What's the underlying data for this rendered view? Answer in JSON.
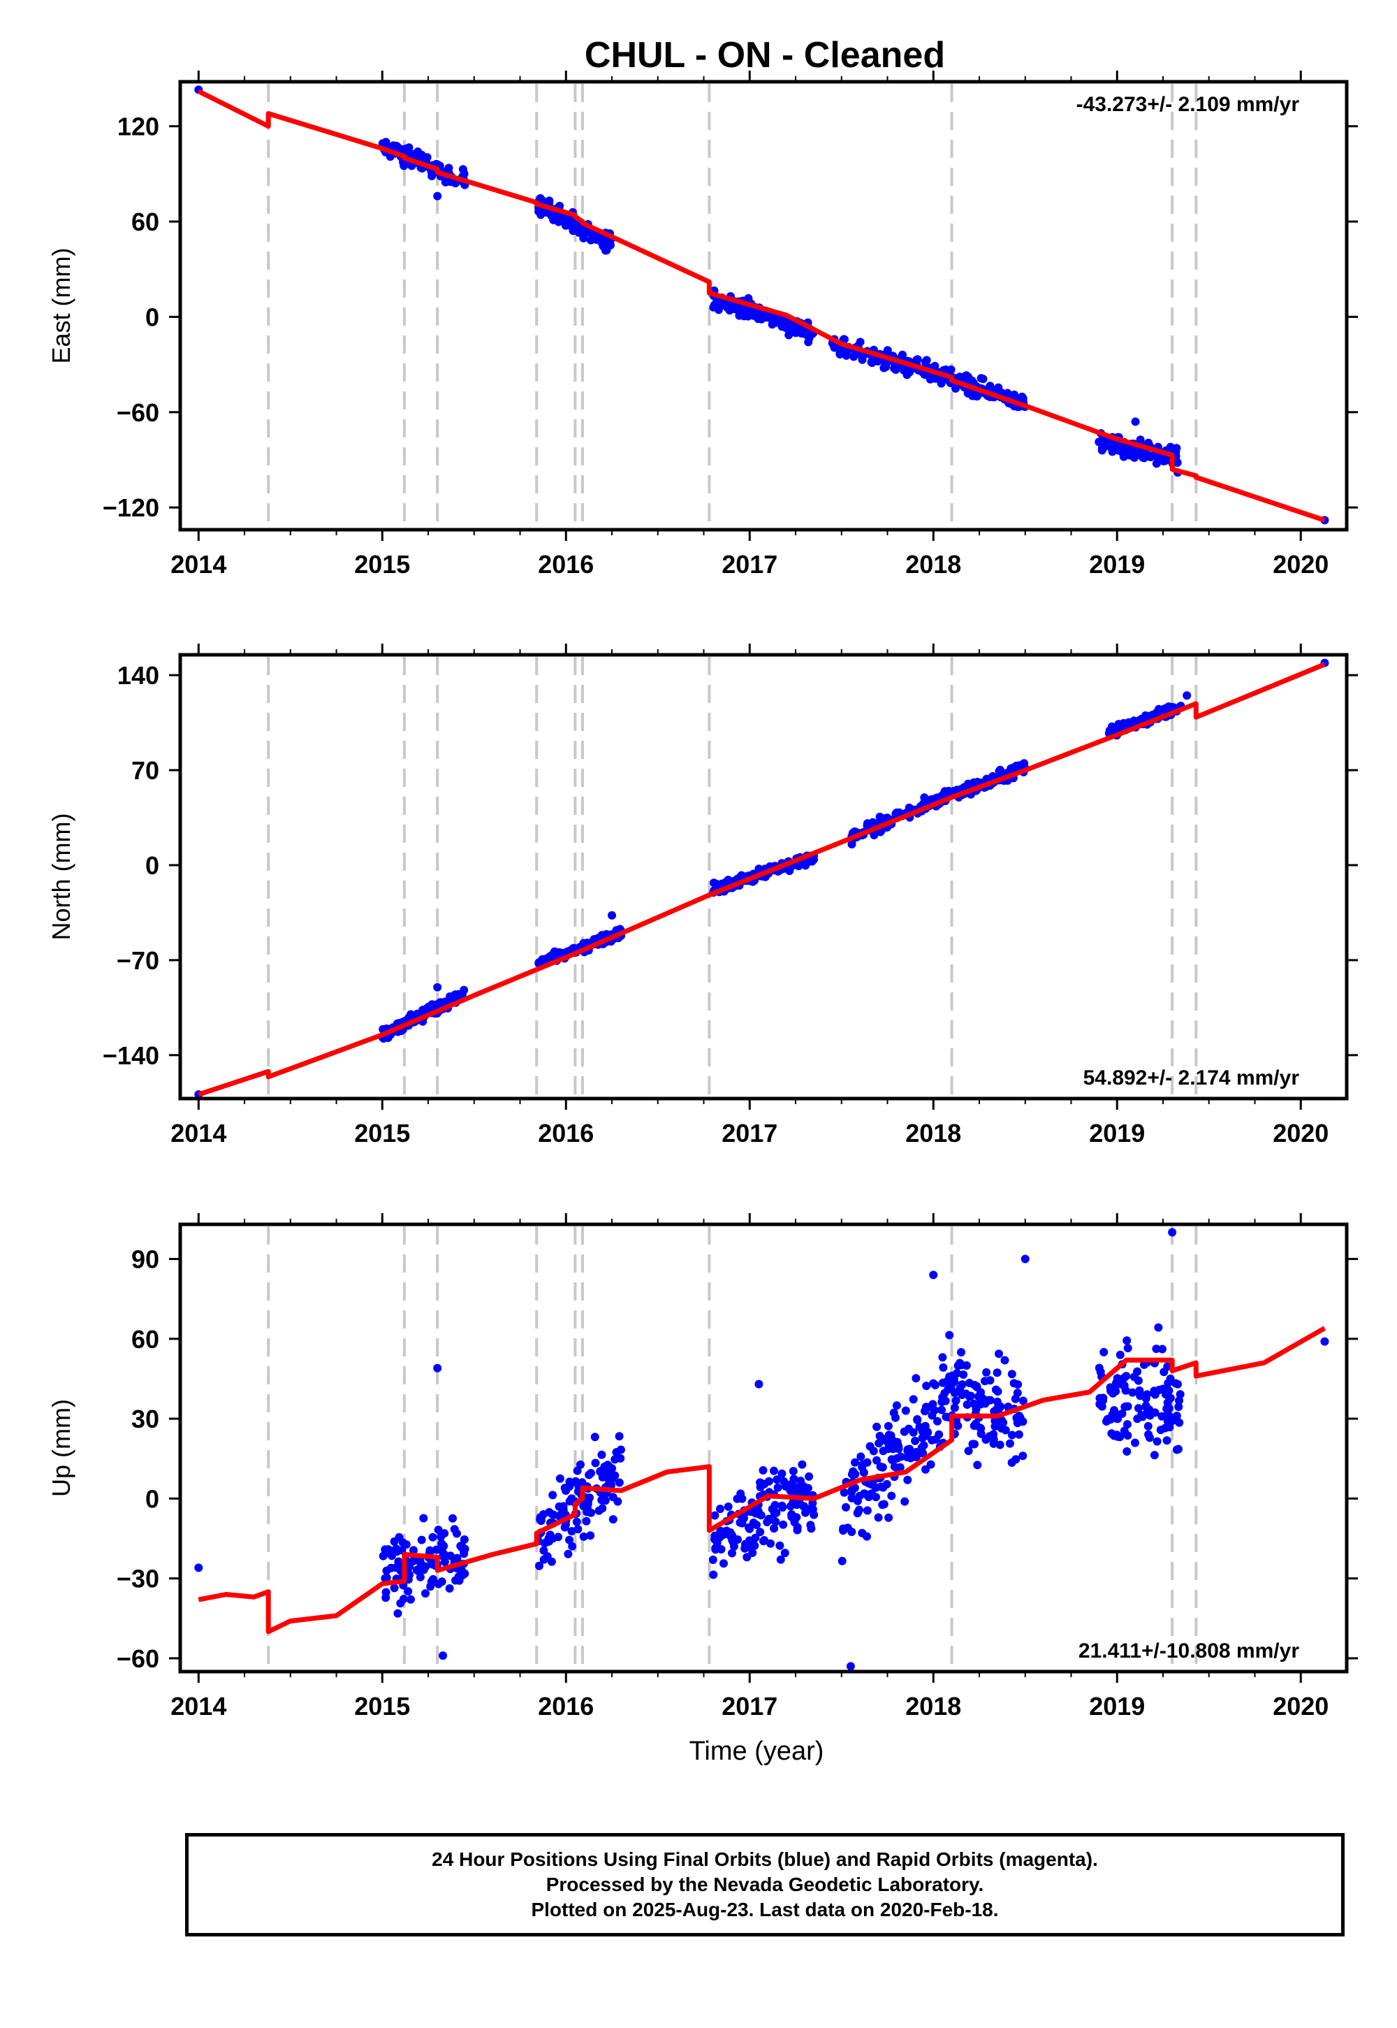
{
  "title": "CHUL  - ON - Cleaned",
  "colors": {
    "points": "#0000ff",
    "model": "#ff0000",
    "offsets": "#c8c8c8",
    "frame": "#000000"
  },
  "chart_data": [
    {
      "type": "scatter",
      "component": "east",
      "ylabel": "East (mm)",
      "xlabel": "",
      "xlim": [
        2013.9,
        2020.25
      ],
      "ylim": [
        -134,
        148
      ],
      "xticks": [
        2014,
        2015,
        2016,
        2017,
        2018,
        2019,
        2020
      ],
      "yticks": [
        120,
        60,
        0,
        -60,
        -120
      ],
      "rate_label": "-43.273+/- 2.109 mm/yr",
      "rate_position": "top-right",
      "offset_epochs": [
        2014.38,
        2015.12,
        2015.3,
        2015.84,
        2016.05,
        2016.09,
        2016.78,
        2018.1,
        2019.3,
        2019.43
      ],
      "model": {
        "x": [
          2014.0,
          2014.38,
          2014.38,
          2015.0,
          2015.12,
          2015.12,
          2015.3,
          2015.3,
          2015.84,
          2015.84,
          2016.05,
          2016.05,
          2016.09,
          2016.09,
          2016.78,
          2016.78,
          2017.2,
          2017.5,
          2018.1,
          2018.1,
          2018.5,
          2019.0,
          2019.3,
          2019.3,
          2019.43,
          2019.43,
          2020.13
        ],
        "y": [
          142,
          120,
          128,
          106,
          101,
          100,
          93,
          91,
          72,
          71,
          64,
          63,
          60,
          59,
          22,
          15,
          1,
          -17,
          -38,
          -40,
          -56,
          -77,
          -87,
          -96,
          -100,
          -101,
          -128
        ]
      },
      "points": {
        "segments": [
          {
            "x_start": 2015.0,
            "x_end": 2015.45,
            "y_start": 107,
            "y_end": 86,
            "noise": 4
          },
          {
            "x_start": 2015.85,
            "x_end": 2016.25,
            "y_start": 71,
            "y_end": 46,
            "noise": 4
          },
          {
            "x_start": 2016.8,
            "x_end": 2017.35,
            "y_start": 12,
            "y_end": -10,
            "noise": 4
          },
          {
            "x_start": 2017.45,
            "x_end": 2018.1,
            "y_start": -18,
            "y_end": -38,
            "noise": 4
          },
          {
            "x_start": 2018.1,
            "x_end": 2018.5,
            "y_start": -40,
            "y_end": -54,
            "noise": 4
          },
          {
            "x_start": 2018.9,
            "x_end": 2019.33,
            "y_start": -80,
            "y_end": -88,
            "noise": 4
          }
        ],
        "x": [
          2014.0,
          2015.3,
          2019.1,
          2019.33,
          2020.13
        ],
        "y": [
          143,
          76,
          -66,
          -98,
          -128
        ]
      }
    },
    {
      "type": "scatter",
      "component": "north",
      "ylabel": "North (mm)",
      "xlabel": "",
      "xlim": [
        2013.9,
        2020.25
      ],
      "ylim": [
        -172,
        155
      ],
      "xticks": [
        2014,
        2015,
        2016,
        2017,
        2018,
        2019,
        2020
      ],
      "yticks": [
        140,
        70,
        0,
        -70,
        -140
      ],
      "rate_label": "54.892+/- 2.174 mm/yr",
      "rate_position": "bottom-right",
      "offset_epochs": [
        2014.38,
        2015.12,
        2015.3,
        2015.84,
        2016.05,
        2016.09,
        2016.78,
        2018.1,
        2019.3,
        2019.43
      ],
      "model": {
        "x": [
          2014.0,
          2014.38,
          2014.38,
          2015.0,
          2015.5,
          2016.0,
          2016.78,
          2017.5,
          2018.1,
          2018.5,
          2019.0,
          2019.43,
          2019.43,
          2020.13
        ],
        "y": [
          -169,
          -152,
          -156,
          -125,
          -96,
          -68,
          -22,
          17,
          50,
          70,
          96,
          119,
          109,
          148
        ]
      },
      "points": {
        "segments": [
          {
            "x_start": 2015.0,
            "x_end": 2015.45,
            "y_start": -125,
            "y_end": -95,
            "noise": 3
          },
          {
            "x_start": 2015.85,
            "x_end": 2016.3,
            "y_start": -72,
            "y_end": -50,
            "noise": 3
          },
          {
            "x_start": 2016.8,
            "x_end": 2017.35,
            "y_start": -18,
            "y_end": 6,
            "noise": 3
          },
          {
            "x_start": 2017.55,
            "x_end": 2018.1,
            "y_start": 20,
            "y_end": 53,
            "noise": 3
          },
          {
            "x_start": 2018.1,
            "x_end": 2018.5,
            "y_start": 52,
            "y_end": 72,
            "noise": 3
          },
          {
            "x_start": 2018.95,
            "x_end": 2019.35,
            "y_start": 97,
            "y_end": 117,
            "noise": 3
          }
        ],
        "x": [
          2014.0,
          2015.3,
          2016.25,
          2019.38,
          2020.13
        ],
        "y": [
          -169,
          -90,
          -37,
          125,
          149
        ]
      }
    },
    {
      "type": "scatter",
      "component": "up",
      "ylabel": "Up (mm)",
      "xlabel": "Time (year)",
      "xlim": [
        2013.9,
        2020.25
      ],
      "ylim": [
        -65,
        103
      ],
      "xticks": [
        2014,
        2015,
        2016,
        2017,
        2018,
        2019,
        2020
      ],
      "yticks": [
        90,
        60,
        30,
        0,
        -30,
        -60
      ],
      "rate_label": "21.411+/-10.808 mm/yr",
      "rate_position": "bottom-right",
      "offset_epochs": [
        2014.38,
        2015.12,
        2015.3,
        2015.84,
        2016.05,
        2016.09,
        2016.78,
        2018.1,
        2019.3,
        2019.43
      ],
      "model": {
        "x": [
          2014.0,
          2014.15,
          2014.3,
          2014.38,
          2014.38,
          2014.5,
          2014.75,
          2015.0,
          2015.12,
          2015.12,
          2015.3,
          2015.3,
          2015.6,
          2015.84,
          2015.84,
          2016.05,
          2016.05,
          2016.09,
          2016.09,
          2016.3,
          2016.55,
          2016.78,
          2016.78,
          2017.1,
          2017.35,
          2017.6,
          2017.85,
          2018.1,
          2018.1,
          2018.35,
          2018.6,
          2018.85,
          2019.05,
          2019.3,
          2019.3,
          2019.43,
          2019.43,
          2019.8,
          2020.13
        ],
        "y": [
          -38,
          -36,
          -37,
          -35,
          -50,
          -46,
          -44,
          -32,
          -31,
          -21,
          -22,
          -27,
          -21,
          -17,
          -13,
          -6,
          -2,
          0,
          4,
          3,
          10,
          12,
          -12,
          1,
          0,
          7,
          10,
          22,
          31,
          31,
          37,
          40,
          52,
          52,
          48,
          51,
          46,
          51,
          64
        ]
      },
      "points": {
        "segments": [
          {
            "x_start": 2015.0,
            "x_end": 2015.45,
            "y_start": -28,
            "y_end": -22,
            "noise": 9
          },
          {
            "x_start": 2015.85,
            "x_end": 2016.3,
            "y_start": -15,
            "y_end": 12,
            "noise": 10
          },
          {
            "x_start": 2016.8,
            "x_end": 2017.35,
            "y_start": -15,
            "y_end": 2,
            "noise": 11
          },
          {
            "x_start": 2017.5,
            "x_end": 2018.1,
            "y_start": -5,
            "y_end": 40,
            "noise": 14
          },
          {
            "x_start": 2018.1,
            "x_end": 2018.5,
            "y_start": 38,
            "y_end": 28,
            "noise": 12
          },
          {
            "x_start": 2018.9,
            "x_end": 2019.35,
            "y_start": 40,
            "y_end": 35,
            "noise": 14
          }
        ],
        "x": [
          2014.0,
          2015.3,
          2015.33,
          2017.55,
          2018.5,
          2019.3,
          2020.13,
          2017.05,
          2018.0
        ],
        "y": [
          -26,
          49,
          -59,
          -63,
          90,
          100,
          59,
          43,
          84
        ]
      }
    }
  ],
  "footer": {
    "line1": "24 Hour Positions Using Final Orbits (blue) and Rapid Orbits (magenta).",
    "line2": "Processed by the Nevada Geodetic Laboratory.",
    "line3": "Plotted on 2025-Aug-23. Last data on 2020-Feb-18."
  }
}
